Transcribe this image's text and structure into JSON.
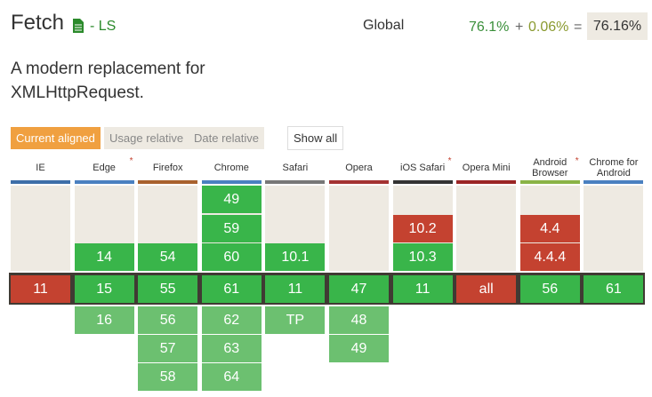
{
  "header": {
    "title": "Fetch",
    "status": "- LS",
    "region": "Global",
    "supported": "76.1%",
    "plus": "+",
    "partial": "0.06%",
    "equals": "=",
    "total": "76.16%"
  },
  "description": "A modern replacement for XMLHttpRequest.",
  "tabs": [
    "Current aligned",
    "Usage relative",
    "Date relative"
  ],
  "show_all": "Show all",
  "browsers": [
    {
      "name": "IE",
      "color": "#3d6ea8",
      "past": [],
      "current": {
        "version": "11",
        "supported": false
      },
      "future": []
    },
    {
      "name": "Edge",
      "note": "*",
      "color": "#4a80c0",
      "past": [
        {
          "version": "14",
          "supported": true
        }
      ],
      "current": {
        "version": "15",
        "supported": true
      },
      "future": [
        {
          "version": "16",
          "supported": true
        }
      ]
    },
    {
      "name": "Firefox",
      "color": "#a8612d",
      "past": [
        {
          "version": "54",
          "supported": true
        }
      ],
      "current": {
        "version": "55",
        "supported": true
      },
      "future": [
        {
          "version": "56",
          "supported": true
        },
        {
          "version": "57",
          "supported": true
        },
        {
          "version": "58",
          "supported": true
        }
      ]
    },
    {
      "name": "Chrome",
      "color": "#4a80c0",
      "past": [
        {
          "version": "49",
          "supported": true
        },
        {
          "version": "59",
          "supported": true
        },
        {
          "version": "60",
          "supported": true
        }
      ],
      "current": {
        "version": "61",
        "supported": true
      },
      "future": [
        {
          "version": "62",
          "supported": true
        },
        {
          "version": "63",
          "supported": true
        },
        {
          "version": "64",
          "supported": true
        }
      ]
    },
    {
      "name": "Safari",
      "color": "#777777",
      "past": [
        {
          "version": "10.1",
          "supported": true
        }
      ],
      "current": {
        "version": "11",
        "supported": true
      },
      "future": [
        {
          "version": "TP",
          "supported": true
        }
      ]
    },
    {
      "name": "Opera",
      "color": "#a33232",
      "past": [],
      "current": {
        "version": "47",
        "supported": true
      },
      "future": [
        {
          "version": "48",
          "supported": true
        },
        {
          "version": "49",
          "supported": true
        }
      ]
    },
    {
      "name": "iOS Safari",
      "note": "*",
      "color": "#333333",
      "past": [
        {
          "version": "10.2",
          "supported": false
        },
        {
          "version": "10.3",
          "supported": true
        }
      ],
      "current": {
        "version": "11",
        "supported": true
      },
      "future": []
    },
    {
      "name": "Opera Mini",
      "color": "#9b2525",
      "past": [],
      "current": {
        "version": "all",
        "supported": false
      },
      "future": []
    },
    {
      "name": "Android Browser",
      "note": "*",
      "color": "#8ab346",
      "past": [
        {
          "version": "4.4",
          "supported": false
        },
        {
          "version": "4.4.4",
          "supported": false
        }
      ],
      "current": {
        "version": "56",
        "supported": true
      },
      "future": []
    },
    {
      "name": "Chrome for Android",
      "color": "#4a80c0",
      "past": [],
      "current": {
        "version": "61",
        "supported": true
      },
      "future": []
    }
  ]
}
